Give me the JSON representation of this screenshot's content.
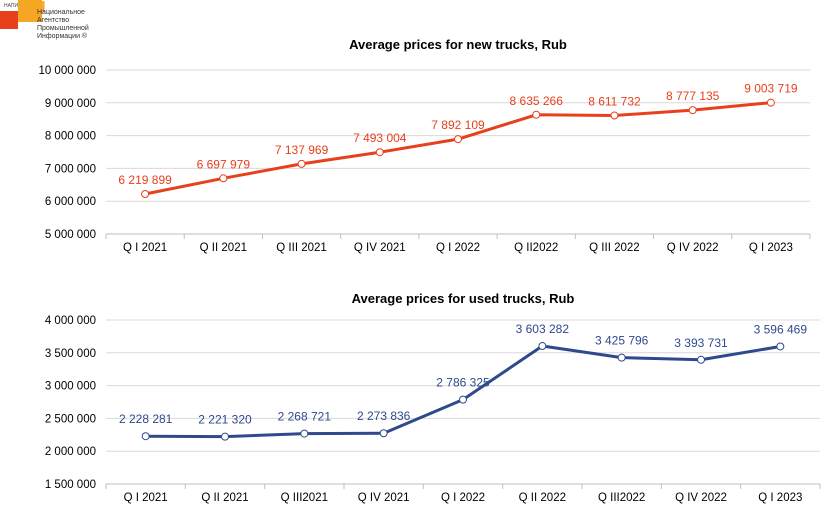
{
  "logo": {
    "abbr": "НАПИ",
    "letter": "Н",
    "lines": [
      "Национальное",
      "Агентство",
      "Промышленной",
      "Информации ®"
    ]
  },
  "chart_data": [
    {
      "type": "line",
      "title": "Average prices for new trucks, Rub",
      "categories": [
        "Q I 2021",
        "Q II 2021",
        "Q III 2021",
        "Q IV 2021",
        "Q I 2022",
        "Q II2022",
        "Q III 2022",
        "Q IV 2022",
        "Q I 2023"
      ],
      "values": [
        6219899,
        6697979,
        7137969,
        7493004,
        7892109,
        8635266,
        8611732,
        8777135,
        9003719
      ],
      "data_labels": [
        "6 219 899",
        "6 697 979",
        "7 137 969",
        "7 493 004",
        "7 892 109",
        "8 635 266",
        "8 611 732",
        "8 777 135",
        "9 003 719"
      ],
      "ylim": [
        5000000,
        10000000
      ],
      "yticks": [
        5000000,
        6000000,
        7000000,
        8000000,
        9000000,
        10000000
      ],
      "ytick_labels": [
        "5 000 000",
        "6 000 000",
        "7 000 000",
        "8 000 000",
        "9 000 000",
        "10 000 000"
      ],
      "color": "#e8401c",
      "grid": true,
      "legend": "none"
    },
    {
      "type": "line",
      "title": "Average prices for used trucks, Rub",
      "categories": [
        "Q I 2021",
        "Q II 2021",
        "Q III2021",
        "Q IV 2021",
        "Q I 2022",
        "Q II 2022",
        "Q III2022",
        "Q IV 2022",
        "Q I 2023"
      ],
      "values": [
        2228281,
        2221320,
        2268721,
        2273836,
        2786325,
        3603282,
        3425796,
        3393731,
        3596469
      ],
      "data_labels": [
        "2 228 281",
        "2 221 320",
        "2 268 721",
        "2 273 836",
        "2 786 325",
        "3 603 282",
        "3 425 796",
        "3 393 731",
        "3 596 469"
      ],
      "ylim": [
        1500000,
        4000000
      ],
      "yticks": [
        1500000,
        2000000,
        2500000,
        3000000,
        3500000,
        4000000
      ],
      "ytick_labels": [
        "1 500 000",
        "2 000 000",
        "2 500 000",
        "3 000 000",
        "3 500 000",
        "4 000 000"
      ],
      "color": "#2e4a8c",
      "grid": true,
      "legend": "none"
    }
  ]
}
